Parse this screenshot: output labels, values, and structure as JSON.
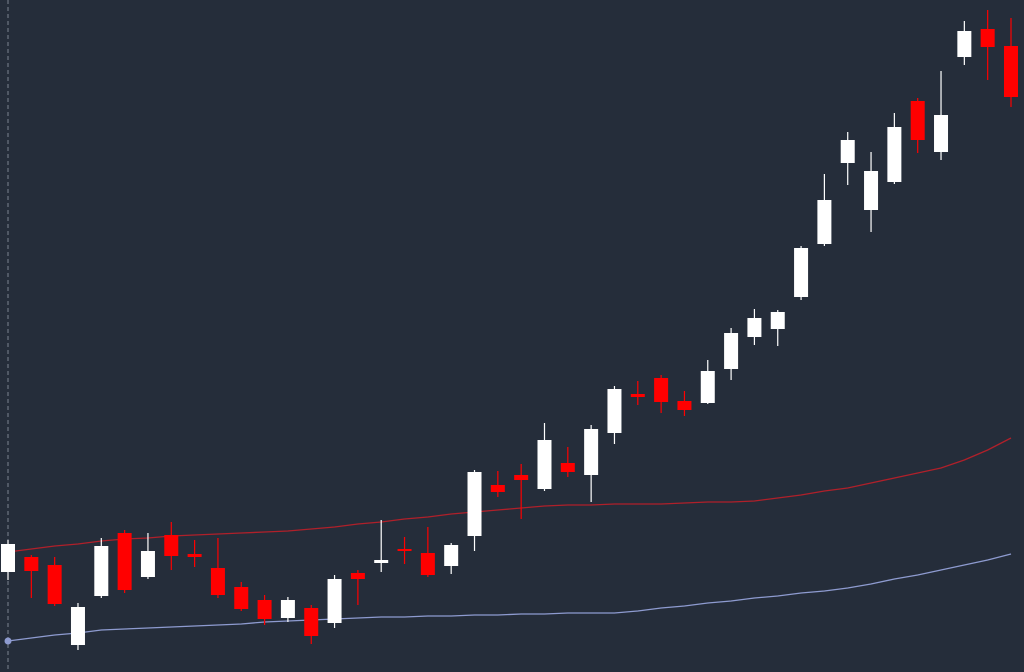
{
  "chart_data": {
    "type": "candlestick",
    "ylim": [
      0,
      672
    ],
    "up_color": "#ffffff",
    "down_color": "#ff0000",
    "open": [
      100,
      115,
      107,
      27,
      76,
      139,
      95,
      137,
      118,
      104,
      85,
      72,
      54,
      64,
      49,
      99,
      109,
      123,
      119,
      106,
      136,
      187,
      197,
      183,
      209,
      197,
      239,
      278,
      294,
      271,
      269,
      303,
      335,
      343,
      375,
      428,
      509,
      462,
      490,
      571,
      520,
      615,
      643,
      626
    ],
    "high": [
      132,
      117,
      115,
      69,
      134,
      142,
      139,
      150,
      132,
      134,
      90,
      77,
      75,
      67,
      97,
      102,
      152,
      135,
      145,
      129,
      202,
      201,
      208,
      249,
      225,
      247,
      286,
      291,
      297,
      281,
      312,
      344,
      363,
      362,
      426,
      498,
      540,
      520,
      559,
      574,
      601,
      651,
      662,
      654
    ],
    "low": [
      92,
      74,
      66,
      22,
      74,
      79,
      93,
      102,
      105,
      74,
      61,
      47,
      50,
      28,
      44,
      67,
      100,
      108,
      95,
      98,
      121,
      175,
      153,
      181,
      195,
      170,
      228,
      267,
      259,
      256,
      268,
      292,
      327,
      326,
      372,
      426,
      487,
      440,
      488,
      519,
      512,
      607,
      592,
      565
    ],
    "close": [
      128,
      101,
      68,
      65,
      126,
      82,
      121,
      116,
      115,
      77,
      63,
      53,
      72,
      36,
      93,
      93,
      112,
      121,
      97,
      127,
      200,
      180,
      192,
      232,
      200,
      243,
      283,
      275,
      270,
      262,
      301,
      339,
      354,
      360,
      424,
      472,
      532,
      501,
      545,
      532,
      557,
      641,
      625,
      575
    ],
    "lines": [
      {
        "color": "#b0202a",
        "values": [
          120,
          123,
          126,
          128,
          131,
          133,
          134,
          136,
          137,
          138,
          139,
          140,
          141,
          143,
          145,
          148,
          150,
          153,
          155,
          158,
          160,
          162,
          164,
          166,
          167,
          167,
          168,
          168,
          168,
          169,
          170,
          170,
          171,
          174,
          177,
          181,
          184,
          189,
          194,
          199,
          204,
          212,
          222,
          234
        ]
      },
      {
        "color": "#8e9bd0",
        "values": [
          31,
          34,
          37,
          39,
          42,
          43,
          44,
          45,
          46,
          47,
          48,
          50,
          51,
          52,
          53,
          54,
          55,
          55,
          56,
          56,
          57,
          57,
          58,
          58,
          59,
          59,
          59,
          61,
          64,
          66,
          69,
          71,
          74,
          76,
          79,
          81,
          84,
          88,
          93,
          97,
          102,
          107,
          112,
          118
        ]
      }
    ]
  }
}
